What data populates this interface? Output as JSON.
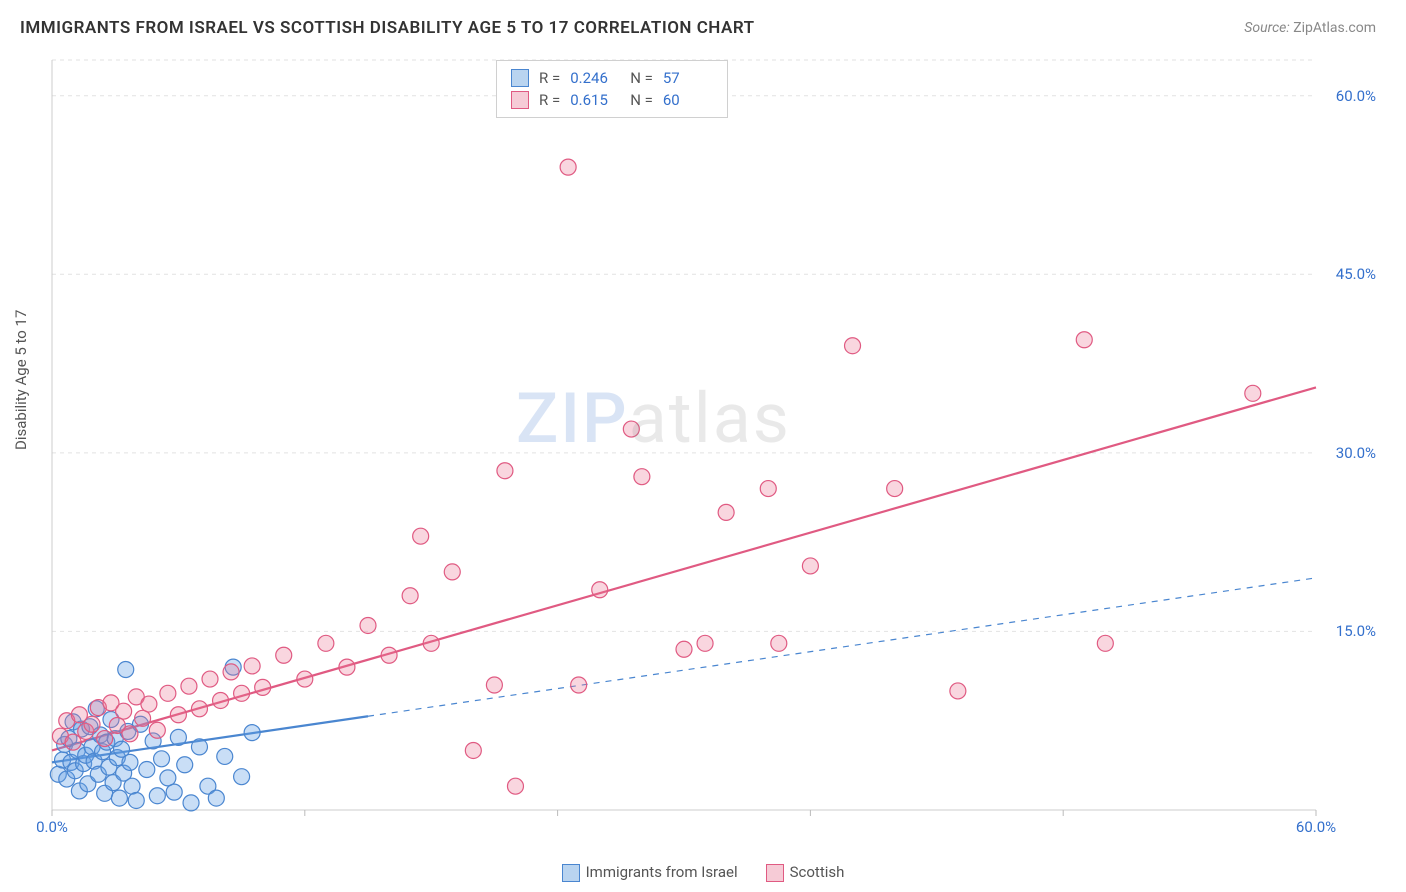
{
  "title": "IMMIGRANTS FROM ISRAEL VS SCOTTISH DISABILITY AGE 5 TO 17 CORRELATION CHART",
  "source_label": "Source:",
  "source_value": "ZipAtlas.com",
  "ylabel": "Disability Age 5 to 17",
  "watermark_a": "ZIP",
  "watermark_b": "atlas",
  "chart": {
    "type": "scatter",
    "xlim": [
      0,
      60
    ],
    "ylim": [
      0,
      63
    ],
    "xticks": [
      0,
      12,
      24,
      36,
      48,
      60
    ],
    "xtick_labels": [
      "0.0%",
      "",
      "",
      "",
      "",
      "60.0%"
    ],
    "yticks": [
      15,
      30,
      45,
      60
    ],
    "ytick_labels": [
      "15.0%",
      "30.0%",
      "45.0%",
      "60.0%"
    ],
    "xtick_label_color": "#3470cc",
    "ytick_label_color": "#3470cc",
    "grid_color": "#e2e2e2",
    "axis_color": "#cccccc",
    "tick_mark_color": "#bbbbbb",
    "background_color": "#ffffff",
    "marker_radius": 8,
    "marker_stroke_width": 1.2,
    "line_width": 2.2
  },
  "series": [
    {
      "name": "Immigrants from Israel",
      "color_fill": "rgba(100,160,230,0.35)",
      "color_stroke": "#4a86d0",
      "swatch_fill": "#b9d4f0",
      "swatch_border": "#4a86d0",
      "R_label": "R =",
      "R": "0.246",
      "N_label": "N =",
      "N": "57",
      "fit": {
        "x1": 0,
        "y1": 4.0,
        "x2": 15,
        "y2": 8.2,
        "solid_until_x": 15,
        "dash_to_x": 60,
        "dash_to_y": 19.5
      },
      "points": [
        [
          0.3,
          3.0
        ],
        [
          0.5,
          4.2
        ],
        [
          0.6,
          5.5
        ],
        [
          0.7,
          2.6
        ],
        [
          0.8,
          6.0
        ],
        [
          0.9,
          4.0
        ],
        [
          1.0,
          7.4
        ],
        [
          1.1,
          3.3
        ],
        [
          1.2,
          5.0
        ],
        [
          1.3,
          1.6
        ],
        [
          1.4,
          6.8
        ],
        [
          1.5,
          3.9
        ],
        [
          1.6,
          4.6
        ],
        [
          1.7,
          2.2
        ],
        [
          1.8,
          7.0
        ],
        [
          1.9,
          5.3
        ],
        [
          2.0,
          4.1
        ],
        [
          2.1,
          8.5
        ],
        [
          2.2,
          3.0
        ],
        [
          2.3,
          6.3
        ],
        [
          2.4,
          4.9
        ],
        [
          2.5,
          1.4
        ],
        [
          2.6,
          5.7
        ],
        [
          2.7,
          3.6
        ],
        [
          2.8,
          7.6
        ],
        [
          2.9,
          2.3
        ],
        [
          3.0,
          6.0
        ],
        [
          3.1,
          4.4
        ],
        [
          3.2,
          1.0
        ],
        [
          3.3,
          5.1
        ],
        [
          3.4,
          3.1
        ],
        [
          3.5,
          11.8
        ],
        [
          3.6,
          6.6
        ],
        [
          3.7,
          4.0
        ],
        [
          3.8,
          2.0
        ],
        [
          4.0,
          0.8
        ],
        [
          4.2,
          7.2
        ],
        [
          4.5,
          3.4
        ],
        [
          4.8,
          5.8
        ],
        [
          5.0,
          1.2
        ],
        [
          5.2,
          4.3
        ],
        [
          5.5,
          2.7
        ],
        [
          5.8,
          1.5
        ],
        [
          6.0,
          6.1
        ],
        [
          6.3,
          3.8
        ],
        [
          6.6,
          0.6
        ],
        [
          7.0,
          5.3
        ],
        [
          7.4,
          2.0
        ],
        [
          7.8,
          1.0
        ],
        [
          8.2,
          4.5
        ],
        [
          8.6,
          12.0
        ],
        [
          9.0,
          2.8
        ],
        [
          9.5,
          6.5
        ]
      ]
    },
    {
      "name": "Scottish",
      "color_fill": "rgba(235,120,150,0.30)",
      "color_stroke": "#e05a82",
      "swatch_fill": "#f6cbd6",
      "swatch_border": "#e05a82",
      "R_label": "R =",
      "R": "0.615",
      "N_label": "N =",
      "N": "60",
      "fit": {
        "x1": 0,
        "y1": 5.0,
        "x2": 60,
        "y2": 35.5,
        "solid_until_x": 60
      },
      "points": [
        [
          0.4,
          6.2
        ],
        [
          0.7,
          7.5
        ],
        [
          1.0,
          5.7
        ],
        [
          1.3,
          8.0
        ],
        [
          1.6,
          6.6
        ],
        [
          1.9,
          7.2
        ],
        [
          2.2,
          8.6
        ],
        [
          2.5,
          6.0
        ],
        [
          2.8,
          9.0
        ],
        [
          3.1,
          7.1
        ],
        [
          3.4,
          8.3
        ],
        [
          3.7,
          6.4
        ],
        [
          4.0,
          9.5
        ],
        [
          4.3,
          7.7
        ],
        [
          4.6,
          8.9
        ],
        [
          5.0,
          6.7
        ],
        [
          5.5,
          9.8
        ],
        [
          6.0,
          8.0
        ],
        [
          6.5,
          10.4
        ],
        [
          7.0,
          8.5
        ],
        [
          7.5,
          11.0
        ],
        [
          8.0,
          9.2
        ],
        [
          8.5,
          11.6
        ],
        [
          9.0,
          9.8
        ],
        [
          9.5,
          12.1
        ],
        [
          10.0,
          10.3
        ],
        [
          11.0,
          13.0
        ],
        [
          12.0,
          11.0
        ],
        [
          13.0,
          14.0
        ],
        [
          14.0,
          12.0
        ],
        [
          15.0,
          15.5
        ],
        [
          16.0,
          13.0
        ],
        [
          17.0,
          18.0
        ],
        [
          18.0,
          14.0
        ],
        [
          17.5,
          23.0
        ],
        [
          19.0,
          20.0
        ],
        [
          20.0,
          5.0
        ],
        [
          21.5,
          28.5
        ],
        [
          21.0,
          10.5
        ],
        [
          22.0,
          2.0
        ],
        [
          24.5,
          54.0
        ],
        [
          25.0,
          10.5
        ],
        [
          26.0,
          18.5
        ],
        [
          27.5,
          32.0
        ],
        [
          28.0,
          28.0
        ],
        [
          30.0,
          13.5
        ],
        [
          31.0,
          14.0
        ],
        [
          32.0,
          25.0
        ],
        [
          34.0,
          27.0
        ],
        [
          34.5,
          14.0
        ],
        [
          36.0,
          20.5
        ],
        [
          38.0,
          39.0
        ],
        [
          40.0,
          27.0
        ],
        [
          43.0,
          10.0
        ],
        [
          49.0,
          39.5
        ],
        [
          50.0,
          14.0
        ],
        [
          57.0,
          35.0
        ]
      ]
    }
  ],
  "legend_bottom": [
    {
      "label": "Immigrants from Israel"
    },
    {
      "label": "Scottish"
    }
  ]
}
